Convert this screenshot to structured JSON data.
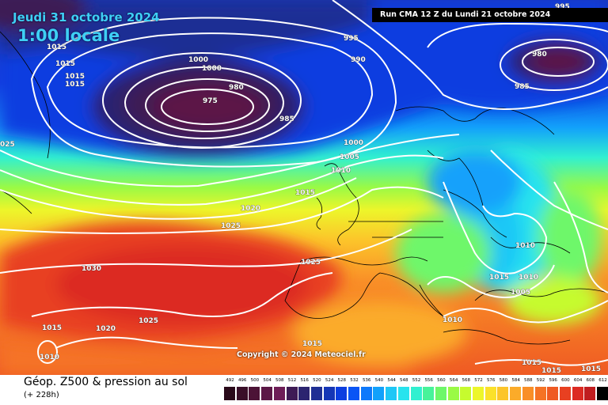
{
  "map": {
    "date": "Jeudi 31 octobre 2024",
    "time": "1:00 locale",
    "run": "Run CMA 12 Z du Lundi 21 octobre 2024",
    "copyright": "Copyright © 2024 Meteociel.fr",
    "parameter": "Géop. Z500 & pression au sol",
    "step": "(+ 228h)"
  },
  "scale": {
    "labels": [
      "492",
      "496",
      "500",
      "504",
      "508",
      "512",
      "516",
      "520",
      "524",
      "528",
      "532",
      "536",
      "540",
      "544",
      "548",
      "552",
      "556",
      "560",
      "564",
      "568",
      "572",
      "576",
      "580",
      "584",
      "588",
      "592",
      "596",
      "600",
      "604",
      "608",
      "612"
    ],
    "colors": [
      "#2a0a1a",
      "#3a0f28",
      "#4c1336",
      "#5c1846",
      "#6e1d57",
      "#3e1b55",
      "#2b2470",
      "#1f2f94",
      "#1536b6",
      "#0c3ee0",
      "#0a55f5",
      "#0d79fb",
      "#12a1fb",
      "#1fc7f6",
      "#28e3ee",
      "#31f0d0",
      "#47f39a",
      "#6ef76a",
      "#9afa45",
      "#c6fb2e",
      "#edf62a",
      "#fbe12a",
      "#fcc52a",
      "#fbab29",
      "#f98f27",
      "#f57325",
      "#ef5a23",
      "#e84021",
      "#dc2a22",
      "#c01d20",
      "#000000"
    ]
  },
  "isobars": [
    {
      "text": "995"
    },
    {
      "text": "1015"
    },
    {
      "text": "1015"
    },
    {
      "text": "1015"
    },
    {
      "text": "1015"
    },
    {
      "text": "1000"
    },
    {
      "text": "1000"
    },
    {
      "text": "995"
    },
    {
      "text": "990"
    },
    {
      "text": "980"
    },
    {
      "text": "980"
    },
    {
      "text": "975"
    },
    {
      "text": "985"
    },
    {
      "text": "985"
    },
    {
      "text": "025"
    },
    {
      "text": "1000"
    },
    {
      "text": "1005"
    },
    {
      "text": "1010"
    },
    {
      "text": "1015"
    },
    {
      "text": "1020"
    },
    {
      "text": "1025"
    },
    {
      "text": "1030"
    },
    {
      "text": "1025"
    },
    {
      "text": "1010"
    },
    {
      "text": "1015"
    },
    {
      "text": "1010"
    },
    {
      "text": "1005"
    },
    {
      "text": "1010"
    },
    {
      "text": "1015"
    },
    {
      "text": "1020"
    },
    {
      "text": "1025"
    },
    {
      "text": "1010"
    },
    {
      "text": "1015"
    },
    {
      "text": "1015"
    },
    {
      "text": "1015"
    },
    {
      "text": "1015"
    }
  ]
}
